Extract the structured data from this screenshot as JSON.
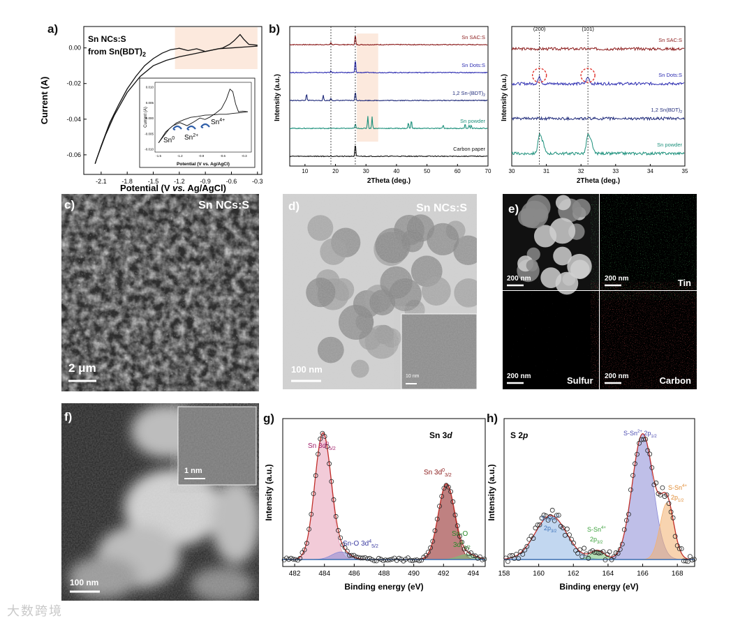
{
  "figure": {
    "watermark": "大数跨境",
    "colors": {
      "sac": "#8b1a1a",
      "dots": "#2a2ab0",
      "bdt": "#1f2a7a",
      "powder": "#1a8f7a",
      "carbon": "#111111",
      "pink": "#e8a0b8",
      "blue": "#8fb6e3",
      "violet": "#8a8ad6",
      "orange": "#f3b070",
      "green": "#77c277"
    }
  },
  "panel_a": {
    "label": "a)",
    "title_line1": "Sn NCs:S",
    "title_line2": "from Sn(BDT)",
    "title_sub": "2",
    "xlabel_pre": "Potential (V ",
    "xlabel_italic": "vs.",
    "xlabel_post": " Ag/AgCl)",
    "ylabel": "Current (A)",
    "inset_xlabel": "Potential (V vs. Ag/AgCl)",
    "inset_ylabel": "Current (A)",
    "inset_labels": {
      "sn0": "Sn",
      "sn0_sup": "0",
      "sn2": "Sn",
      "sn2_sup": "2+",
      "sn4": "Sn",
      "sn4_sup": "4+"
    },
    "chart_data": {
      "type": "line",
      "xlabel": "Potential (V vs. Ag/AgCl)",
      "ylabel": "Current (A)",
      "xlim": [
        -2.3,
        -0.25
      ],
      "ylim": [
        -0.071,
        0.012
      ],
      "xticks": [
        "-2.1",
        "-1.8",
        "-1.5",
        "-1.2",
        "-0.9",
        "-0.6",
        "-0.3"
      ],
      "xtick_values": [
        -2.1,
        -1.8,
        -1.5,
        -1.2,
        -0.9,
        -0.6,
        -0.3
      ],
      "yticks": [
        "0.00",
        "-0.02",
        "-0.04",
        "-0.06"
      ],
      "ytick_values": [
        0.0,
        -0.02,
        -0.04,
        -0.06
      ],
      "series": [
        {
          "x": [
            -0.3,
            -0.45,
            -0.6,
            -0.75,
            -0.9,
            -1.05,
            -1.2,
            -1.35,
            -1.5,
            -1.65,
            -1.8,
            -1.95,
            -2.05,
            -2.15,
            -2.17
          ],
          "y": [
            0.001,
            0.0005,
            0.0,
            -0.0005,
            -0.002,
            -0.0035,
            -0.005,
            -0.007,
            -0.01,
            -0.016,
            -0.025,
            -0.038,
            -0.049,
            -0.062,
            -0.065
          ]
        },
        {
          "x": [
            -2.17,
            -2.1,
            -2.0,
            -1.9,
            -1.8,
            -1.7,
            -1.6,
            -1.5,
            -1.4,
            -1.3,
            -1.2,
            -1.1,
            -1.0,
            -0.9,
            -0.8,
            -0.7,
            -0.62,
            -0.57,
            -0.53,
            -0.5,
            -0.46,
            -0.4,
            -0.3
          ],
          "y": [
            -0.065,
            -0.055,
            -0.042,
            -0.032,
            -0.023,
            -0.016,
            -0.01,
            -0.006,
            -0.003,
            -0.001,
            -0.0002,
            -0.0015,
            -0.0005,
            -0.002,
            -0.001,
            0.0,
            0.002,
            0.004,
            0.006,
            0.0075,
            0.005,
            0.002,
            0.0015
          ]
        }
      ]
    },
    "inset_chart_data": {
      "type": "line",
      "xticks": [
        "-1.5",
        "-1.2",
        "-0.9",
        "-0.6",
        "-0.3"
      ],
      "xtick_values": [
        -1.5,
        -1.2,
        -0.9,
        -0.6,
        -0.3
      ],
      "yticks": [
        "0.010",
        "0.005",
        "0.000",
        "-0.005",
        "-0.010"
      ],
      "ytick_values": [
        0.01,
        0.005,
        0.0,
        -0.005,
        -0.01
      ],
      "xlim": [
        -1.55,
        -0.2
      ],
      "ylim": [
        -0.011,
        0.0115
      ],
      "series": [
        {
          "x": [
            -0.25,
            -0.35,
            -0.45,
            -0.55,
            -0.65,
            -0.75,
            -0.85,
            -0.95,
            -1.05,
            -1.15,
            -1.25,
            -1.35,
            -1.45,
            -1.5
          ],
          "y": [
            0.002,
            0.0017,
            0.0015,
            0.0012,
            0.0012,
            0.001,
            0.0009,
            0.0005,
            0.0002,
            -0.0006,
            -0.0016,
            -0.0035,
            -0.0065,
            -0.008
          ]
        },
        {
          "x": [
            -1.5,
            -1.4,
            -1.3,
            -1.2,
            -1.1,
            -1.0,
            -0.92,
            -0.85,
            -0.78,
            -0.7,
            -0.62,
            -0.55,
            -0.5,
            -0.46,
            -0.42,
            -0.38,
            -0.32,
            -0.25
          ],
          "y": [
            -0.008,
            -0.0045,
            -0.0025,
            -0.0015,
            -0.0025,
            -0.0012,
            0.0,
            -0.0005,
            0.0003,
            0.0015,
            0.003,
            0.006,
            0.0093,
            0.0085,
            0.0045,
            0.002,
            0.0022,
            0.002
          ]
        }
      ]
    }
  },
  "panel_b": {
    "label": "b)",
    "ylabel": "Intensity (a.u.)",
    "xlabel": "2Theta (deg.)",
    "chart_data": {
      "type": "line",
      "xlim": [
        5,
        70
      ],
      "xticks": [
        "10",
        "20",
        "30",
        "40",
        "50",
        "60",
        "70"
      ],
      "xtick_values": [
        10,
        20,
        30,
        40,
        50,
        60,
        70
      ],
      "dashed_lines": [
        18.5,
        26.5
      ],
      "highlight_range": [
        27,
        34
      ],
      "series": [
        {
          "name": "Sn SAC:S",
          "color_key": "sac",
          "offset": 4,
          "peaks": [
            [
              18.5,
              0.15
            ],
            [
              26.5,
              0.6
            ]
          ]
        },
        {
          "name": "Sn Dots:S",
          "color_key": "dots",
          "offset": 3,
          "peaks": [
            [
              18.5,
              0.1
            ],
            [
              26.5,
              0.8
            ]
          ]
        },
        {
          "name": "1,2 Sn-(BDT)",
          "name_sub": "2",
          "color_key": "bdt",
          "offset": 2,
          "peaks": [
            [
              10.5,
              0.4
            ],
            [
              16,
              0.3
            ],
            [
              18.5,
              0.15
            ],
            [
              26.5,
              0.55
            ]
          ]
        },
        {
          "name": "Sn powder",
          "color_key": "powder",
          "offset": 1,
          "peaks": [
            [
              26.5,
              0.3
            ],
            [
              30.6,
              0.75
            ],
            [
              32,
              0.7
            ],
            [
              43.9,
              0.35
            ],
            [
              44.9,
              0.5
            ],
            [
              55.3,
              0.2
            ],
            [
              62.5,
              0.25
            ],
            [
              63.8,
              0.2
            ],
            [
              64.5,
              0.2
            ]
          ]
        },
        {
          "name": "Carbon paper",
          "color_key": "carbon",
          "offset": 0,
          "peaks": [
            [
              18.5,
              0.05
            ],
            [
              26.5,
              0.75
            ]
          ]
        }
      ]
    },
    "zoom_chart_data": {
      "type": "line",
      "xlabel": "2Theta (deg.)",
      "ylabel": "Intensity (a.u.)",
      "xlim": [
        30,
        35
      ],
      "xticks": [
        "30",
        "31",
        "32",
        "33",
        "34",
        "35"
      ],
      "xtick_values": [
        30,
        31,
        32,
        33,
        34,
        35
      ],
      "dashed_lines": [
        30.8,
        32.2
      ],
      "annotations": [
        "(200)",
        "(101)"
      ],
      "series": [
        {
          "name": "Sn SAC:S",
          "color_key": "sac",
          "offset": 3,
          "peaks": []
        },
        {
          "name": "Sn Dots:S",
          "color_key": "dots",
          "offset": 2,
          "peaks": [
            [
              30.8,
              0.35
            ],
            [
              32.2,
              0.35
            ]
          ]
        },
        {
          "name": "1,2 Sn(BDT)",
          "name_sub": "2",
          "color_key": "bdt",
          "offset": 1,
          "peaks": []
        },
        {
          "name": "Sn powder",
          "color_key": "powder",
          "offset": 0,
          "peaks": [
            [
              30.8,
              1.0
            ],
            [
              30.9,
              0.6
            ],
            [
              32.2,
              1.0
            ],
            [
              32.3,
              0.6
            ]
          ]
        }
      ]
    }
  },
  "panel_c": {
    "label": "c)",
    "title": "Sn NCs:S",
    "scale": "2 μm"
  },
  "panel_d": {
    "label": "d)",
    "title": "Sn NCs:S",
    "scale": "100 nm",
    "inset_scale": "10 nm"
  },
  "panel_e": {
    "label": "e)",
    "scales": [
      "200 nm",
      "200 nm",
      "200 nm",
      "200 nm"
    ],
    "tin": "Tin",
    "sulfur": "Sulfur",
    "carbon": "Carbon"
  },
  "panel_f": {
    "label": "f)",
    "scale": "100 nm",
    "inset_scale": "1 nm"
  },
  "panel_g": {
    "label": "g)",
    "title": "Sn 3",
    "title_it": "d",
    "xlabel": "Binding energy (eV)",
    "ylabel": "Intensity (a.u.)",
    "peak_labels": {
      "p1": "Sn 3d",
      "p1_sup": "0",
      "p1_sub": "5/2",
      "p2": "Sn 3d",
      "p2_sup": "0",
      "p2_sub": "3/2",
      "p3": "Sn-O 3d",
      "p3_sup": "4",
      "p3_sub": "5/2",
      "p4a": "Sn-O",
      "p4b": "3d",
      "p4_sup": "4",
      "p4_sub": "3/2"
    },
    "chart_data": {
      "type": "line",
      "xlim": [
        481.2,
        494.8
      ],
      "xticks": [
        "482",
        "484",
        "486",
        "488",
        "490",
        "492",
        "494"
      ],
      "xtick_values": [
        482,
        484,
        486,
        488,
        490,
        492,
        494
      ],
      "peaks": [
        {
          "name": "Sn 3d0 5/2",
          "center": 483.9,
          "height": 1.0,
          "width": 0.55,
          "color_key": "pink"
        },
        {
          "name": "Sn 3d0 3/2",
          "center": 492.2,
          "height": 0.6,
          "width": 0.55,
          "color_key": "sac"
        },
        {
          "name": "Sn-O 3d4 5/2",
          "center": 485.1,
          "height": 0.06,
          "width": 0.6,
          "color_key": "violet"
        },
        {
          "name": "Sn-O 3d4 3/2",
          "center": 493.6,
          "height": 0.04,
          "width": 0.6,
          "color_key": "green"
        }
      ]
    }
  },
  "panel_h": {
    "label": "h)",
    "title": "S 2",
    "title_it": "p",
    "xlabel": "Binding energy (eV)",
    "ylabel": "Intensity (a.u.)",
    "peak_labels": {
      "p1a": "S-Sn",
      "p1_sup": "2+",
      "p1b": "2p",
      "p1_sub": "3/2",
      "p2a": "S-Sn",
      "p2_sup": "4+",
      "p2b": "2p",
      "p2_sub": "3/2",
      "p3a": "S-Sn",
      "p3_sup": "2+",
      "p3b": "2p",
      "p3_sub": "1/2",
      "p4a": "S-Sn",
      "p4_sup": "4+",
      "p4b": "2p",
      "p4_sub": "1/2"
    },
    "chart_data": {
      "type": "line",
      "xlim": [
        158,
        169
      ],
      "xticks": [
        "158",
        "160",
        "162",
        "164",
        "166",
        "168"
      ],
      "xtick_values": [
        158,
        160,
        162,
        164,
        166,
        168
      ],
      "peaks": [
        {
          "name": "S-Sn2+ 2p3/2",
          "center": 160.7,
          "height": 0.35,
          "width": 0.9,
          "color_key": "blue"
        },
        {
          "name": "S-Sn4+ 2p3/2",
          "center": 163.4,
          "height": 0.07,
          "width": 0.4,
          "color_key": "green"
        },
        {
          "name": "S-Sn2+ 2p1/2",
          "center": 166.0,
          "height": 1.0,
          "width": 0.6,
          "color_key": "violet"
        },
        {
          "name": "S-Sn4+ 2p1/2",
          "center": 167.4,
          "height": 0.45,
          "width": 0.4,
          "color_key": "orange"
        }
      ]
    }
  }
}
